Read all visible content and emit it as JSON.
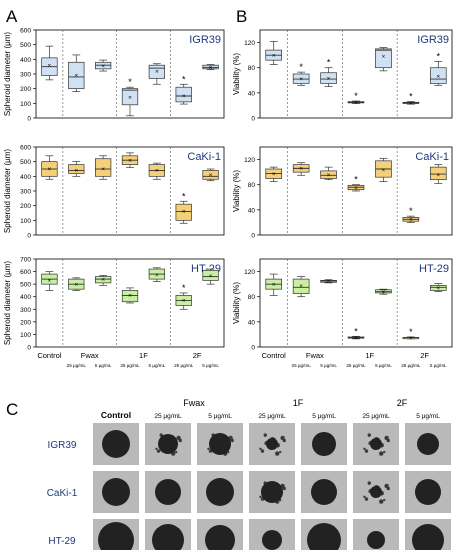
{
  "panels": {
    "a": "A",
    "b": "B",
    "c": "C"
  },
  "colors": {
    "IGR39": "#cfe1f3",
    "CaKi-1": "#f5d078",
    "HT-29": "#c8f0a0",
    "label": "#1f3a7a",
    "box_edge": "#333333"
  },
  "chart_data": [
    {
      "type": "box",
      "panel": "A",
      "ylabel": "Spheroid diameter (µm)",
      "xlabel_groups": [
        "Control",
        "Fwax",
        "1F",
        "2F"
      ],
      "xlabel_concentrations": [
        "25 µg/mL",
        "5 µg/mL",
        "25 µg/mL",
        "5 µg/mL",
        "25 µg/mL",
        "5 µg/mL"
      ],
      "categories": [
        "Control",
        "Fwax 25 µg/mL",
        "Fwax 5 µg/mL",
        "1F 25 µg/mL",
        "1F 5 µg/mL",
        "2F 25 µg/mL",
        "2F 5 µg/mL"
      ],
      "series": [
        {
          "name": "IGR39",
          "ylim": [
            0,
            600
          ],
          "yticks": [
            0,
            100,
            200,
            300,
            400,
            500,
            600
          ],
          "boxes": [
            {
              "min": 260,
              "q1": 290,
              "median": 350,
              "q3": 410,
              "max": 490,
              "mean": 360,
              "sig": false
            },
            {
              "min": 180,
              "q1": 200,
              "median": 280,
              "q3": 380,
              "max": 430,
              "mean": 290,
              "sig": false
            },
            {
              "min": 320,
              "q1": 335,
              "median": 360,
              "q3": 380,
              "max": 395,
              "mean": 355,
              "sig": false
            },
            {
              "min": 15,
              "q1": 90,
              "median": 190,
              "q3": 200,
              "max": 210,
              "mean": 140,
              "sig": true
            },
            {
              "min": 230,
              "q1": 270,
              "median": 340,
              "q3": 360,
              "max": 370,
              "mean": 320,
              "sig": false
            },
            {
              "min": 95,
              "q1": 110,
              "median": 150,
              "q3": 210,
              "max": 230,
              "mean": 150,
              "sig": true
            },
            {
              "min": 330,
              "q1": 335,
              "median": 345,
              "q3": 360,
              "max": 365,
              "mean": 345,
              "sig": false
            }
          ]
        },
        {
          "name": "CaKi-1",
          "ylim": [
            0,
            600
          ],
          "yticks": [
            0,
            100,
            200,
            300,
            400,
            500,
            600
          ],
          "boxes": [
            {
              "min": 380,
              "q1": 400,
              "median": 450,
              "q3": 500,
              "max": 540,
              "mean": 450,
              "sig": false
            },
            {
              "min": 400,
              "q1": 420,
              "median": 440,
              "q3": 480,
              "max": 500,
              "mean": 440,
              "sig": false
            },
            {
              "min": 380,
              "q1": 400,
              "median": 450,
              "q3": 520,
              "max": 540,
              "mean": 450,
              "sig": false
            },
            {
              "min": 460,
              "q1": 480,
              "median": 510,
              "q3": 540,
              "max": 560,
              "mean": 510,
              "sig": false
            },
            {
              "min": 380,
              "q1": 400,
              "median": 440,
              "q3": 480,
              "max": 490,
              "mean": 440,
              "sig": false
            },
            {
              "min": 80,
              "q1": 100,
              "median": 160,
              "q3": 210,
              "max": 230,
              "mean": 160,
              "sig": true
            },
            {
              "min": 370,
              "q1": 380,
              "median": 400,
              "q3": 440,
              "max": 450,
              "mean": 410,
              "sig": false
            }
          ]
        },
        {
          "name": "HT-29",
          "ylim": [
            0,
            700
          ],
          "yticks": [
            0,
            100,
            200,
            300,
            400,
            500,
            600,
            700
          ],
          "boxes": [
            {
              "min": 450,
              "q1": 500,
              "median": 540,
              "q3": 580,
              "max": 600,
              "mean": 530,
              "sig": false
            },
            {
              "min": 450,
              "q1": 460,
              "median": 500,
              "q3": 540,
              "max": 550,
              "mean": 500,
              "sig": false
            },
            {
              "min": 490,
              "q1": 510,
              "median": 540,
              "q3": 560,
              "max": 570,
              "mean": 540,
              "sig": false
            },
            {
              "min": 350,
              "q1": 360,
              "median": 410,
              "q3": 450,
              "max": 470,
              "mean": 410,
              "sig": false
            },
            {
              "min": 520,
              "q1": 540,
              "median": 580,
              "q3": 620,
              "max": 630,
              "mean": 575,
              "sig": false
            },
            {
              "min": 300,
              "q1": 330,
              "median": 370,
              "q3": 410,
              "max": 430,
              "mean": 370,
              "sig": true
            },
            {
              "min": 500,
              "q1": 530,
              "median": 560,
              "q3": 610,
              "max": 620,
              "mean": 565,
              "sig": false
            }
          ]
        }
      ]
    },
    {
      "type": "box",
      "panel": "B",
      "ylabel": "Viability (%)",
      "xlabel_groups": [
        "Control",
        "Fwax",
        "1F",
        "2F"
      ],
      "xlabel_concentrations": [
        "25 µg/mL",
        "5 µg/mL",
        "25 µg/mL",
        "5 µg/mL",
        "25 µg/mL",
        "5 µg/mL"
      ],
      "categories": [
        "Control",
        "Fwax 25 µg/mL",
        "Fwax 5 µg/mL",
        "1F 25 µg/mL",
        "1F 5 µg/mL",
        "2F 25 µg/mL",
        "2F 5 µg/mL"
      ],
      "series": [
        {
          "name": "IGR39",
          "ylim": [
            0,
            140
          ],
          "yticks": [
            0,
            40,
            80,
            120
          ],
          "boxes": [
            {
              "min": 85,
              "q1": 92,
              "median": 100,
              "q3": 108,
              "max": 122,
              "mean": 100,
              "sig": false
            },
            {
              "min": 52,
              "q1": 55,
              "median": 62,
              "q3": 70,
              "max": 73,
              "mean": 62,
              "sig": true
            },
            {
              "min": 50,
              "q1": 55,
              "median": 62,
              "q3": 72,
              "max": 80,
              "mean": 63,
              "sig": true
            },
            {
              "min": 23,
              "q1": 24,
              "median": 25,
              "q3": 26,
              "max": 27,
              "mean": 25,
              "sig": true
            },
            {
              "min": 75,
              "q1": 80,
              "median": 108,
              "q3": 110,
              "max": 112,
              "mean": 98,
              "sig": false
            },
            {
              "min": 22,
              "q1": 23,
              "median": 24,
              "q3": 25,
              "max": 26,
              "mean": 24,
              "sig": true
            },
            {
              "min": 52,
              "q1": 55,
              "median": 62,
              "q3": 80,
              "max": 90,
              "mean": 66,
              "sig": true
            }
          ]
        },
        {
          "name": "CaKi-1",
          "ylim": [
            0,
            140
          ],
          "yticks": [
            0,
            40,
            80,
            120
          ],
          "boxes": [
            {
              "min": 85,
              "q1": 90,
              "median": 98,
              "q3": 105,
              "max": 108,
              "mean": 97,
              "sig": false
            },
            {
              "min": 95,
              "q1": 100,
              "median": 106,
              "q3": 112,
              "max": 115,
              "mean": 106,
              "sig": false
            },
            {
              "min": 88,
              "q1": 90,
              "median": 95,
              "q3": 102,
              "max": 108,
              "mean": 96,
              "sig": false
            },
            {
              "min": 70,
              "q1": 72,
              "median": 76,
              "q3": 79,
              "max": 80,
              "mean": 75,
              "sig": true
            },
            {
              "min": 85,
              "q1": 92,
              "median": 105,
              "q3": 118,
              "max": 122,
              "mean": 104,
              "sig": false
            },
            {
              "min": 20,
              "q1": 22,
              "median": 25,
              "q3": 28,
              "max": 30,
              "mean": 25,
              "sig": true
            },
            {
              "min": 82,
              "q1": 88,
              "median": 97,
              "q3": 108,
              "max": 112,
              "mean": 96,
              "sig": false
            }
          ]
        },
        {
          "name": "HT-29",
          "ylim": [
            0,
            140
          ],
          "yticks": [
            0,
            40,
            80,
            120
          ],
          "boxes": [
            {
              "min": 82,
              "q1": 92,
              "median": 100,
              "q3": 108,
              "max": 116,
              "mean": 100,
              "sig": false
            },
            {
              "min": 80,
              "q1": 85,
              "median": 95,
              "q3": 108,
              "max": 112,
              "mean": 97,
              "sig": false
            },
            {
              "min": 102,
              "q1": 103,
              "median": 105,
              "q3": 106,
              "max": 107,
              "mean": 105,
              "sig": false
            },
            {
              "min": 13,
              "q1": 14,
              "median": 15,
              "q3": 16,
              "max": 17,
              "mean": 15,
              "sig": true
            },
            {
              "min": 84,
              "q1": 86,
              "median": 88,
              "q3": 91,
              "max": 92,
              "mean": 88,
              "sig": false
            },
            {
              "min": 13,
              "q1": 14,
              "median": 15,
              "q3": 15,
              "max": 16,
              "mean": 15,
              "sig": true
            },
            {
              "min": 88,
              "q1": 90,
              "median": 95,
              "q3": 98,
              "max": 101,
              "mean": 94,
              "sig": false
            }
          ]
        }
      ]
    }
  ],
  "image_grid": {
    "col_groups": [
      "Control",
      "Fwax",
      "1F",
      "2F"
    ],
    "col_headers": [
      "Control",
      "25 µg/mL",
      "5 µg/mL",
      "25 µg/mL",
      "5 µg/mL",
      "25 µg/mL",
      "5 µg/mL"
    ],
    "rows": [
      "IGR39",
      "CaKi-1",
      "HT-29"
    ]
  }
}
